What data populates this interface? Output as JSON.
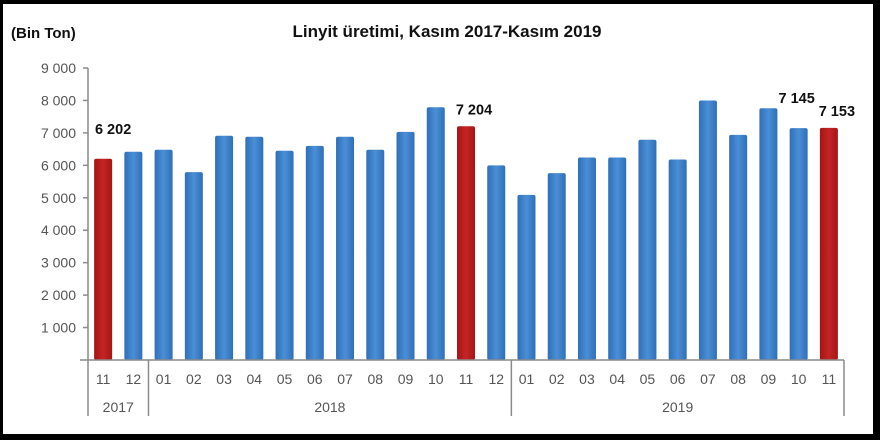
{
  "chart_data": {
    "type": "bar",
    "title": "Linyit üretimi, Kasım 2017-Kasım 2019",
    "unit_label": "(Bin Ton)",
    "xlabel": "",
    "ylabel": "(Bin Ton)",
    "ylim": [
      0,
      9000
    ],
    "yticks": [
      {
        "value": 1000,
        "label": "1 000"
      },
      {
        "value": 2000,
        "label": "2 000"
      },
      {
        "value": 3000,
        "label": "3 000"
      },
      {
        "value": 4000,
        "label": "4 000"
      },
      {
        "value": 5000,
        "label": "5 000"
      },
      {
        "value": 6000,
        "label": "6 000"
      },
      {
        "value": 7000,
        "label": "7 000"
      },
      {
        "value": 8000,
        "label": "8 000"
      },
      {
        "value": 9000,
        "label": "9 000"
      }
    ],
    "grid": false,
    "legend": null,
    "colors": {
      "default": "#3a7dc8",
      "highlight": "#b51c1c"
    },
    "groups": [
      {
        "label": "2017",
        "count": 2
      },
      {
        "label": "2018",
        "count": 12
      },
      {
        "label": "2019",
        "count": 11
      }
    ],
    "categories": [
      "11",
      "12",
      "01",
      "02",
      "03",
      "04",
      "05",
      "06",
      "07",
      "08",
      "09",
      "10",
      "11",
      "12",
      "01",
      "02",
      "03",
      "04",
      "05",
      "06",
      "07",
      "08",
      "09",
      "10",
      "11"
    ],
    "values": [
      6202,
      6420,
      6480,
      5790,
      6910,
      6880,
      6450,
      6600,
      6880,
      6480,
      7030,
      7790,
      7204,
      6000,
      5090,
      5760,
      6240,
      6240,
      6790,
      6180,
      8000,
      6940,
      7760,
      7145,
      7153
    ],
    "highlight_indices": [
      0,
      12,
      24
    ],
    "data_labels": [
      {
        "index": 0,
        "text": "6 202"
      },
      {
        "index": 12,
        "text": "7 204"
      },
      {
        "index": 23,
        "text": "7 145"
      },
      {
        "index": 24,
        "text": "7 153"
      }
    ]
  }
}
